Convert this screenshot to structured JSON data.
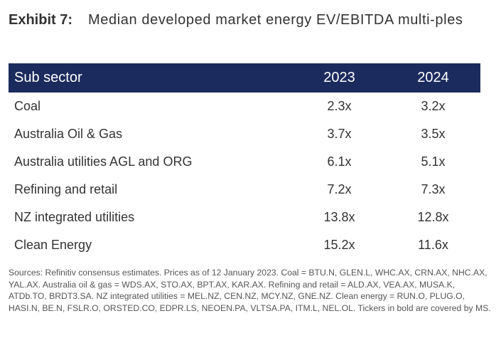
{
  "exhibit": {
    "label": "Exhibit 7:",
    "title": "Median developed market energy EV/EBITDA multi-ples"
  },
  "table": {
    "headers": [
      "Sub sector",
      "2023",
      "2024"
    ],
    "rows": [
      {
        "sector": "Coal",
        "y2023": "2.3x",
        "y2024": "3.2x"
      },
      {
        "sector": "Australia Oil & Gas",
        "y2023": "3.7x",
        "y2024": "3.5x"
      },
      {
        "sector": "Australia utilities AGL and ORG",
        "y2023": "6.1x",
        "y2024": "5.1x"
      },
      {
        "sector": "Refining and retail",
        "y2023": "7.2x",
        "y2024": "7.3x"
      },
      {
        "sector": "NZ integrated utilities",
        "y2023": "13.8x",
        "y2024": "12.8x"
      },
      {
        "sector": "Clean Energy",
        "y2023": "15.2x",
        "y2024": "11.6x"
      }
    ]
  },
  "sources": "Sources: Refinitiv consensus estimates. Prices as of 12 January 2023. Coal = BTU.N, GLEN.L, WHC.AX, CRN.AX, NHC.AX, YAL.AX. Australia oil & gas = WDS.AX, STO.AX, BPT.AX, KAR.AX. Refining and retail = ALD.AX, VEA.AX, MUSA.K, ATDb.TO, BRDT3.SA. NZ integrated utilities = MEL.NZ, CEN.NZ, MCY.NZ, GNE.NZ. Clean energy = RUN.O, PLUG.O, HASI.N, BE.N, FSLR.O, ORSTED.CO, EDPR.LS, NEOEN.PA, VLTSA.PA, ITM.L, NEL.OL. Tickers in bold are covered by MS.",
  "colors": {
    "header_bg": "#1c2b5e",
    "header_text": "#ffffff",
    "body_text": "#333333"
  }
}
